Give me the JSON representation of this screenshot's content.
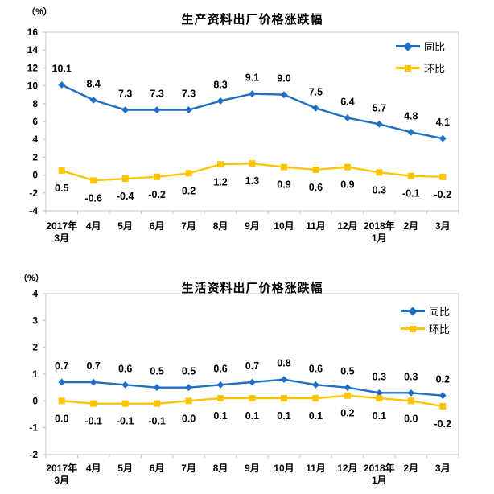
{
  "page": {
    "background": "#FFFFFF",
    "text_color": "#000000",
    "axis_color": "#C4C4C4"
  },
  "chart_data": [
    {
      "type": "line",
      "title": "生产资料出厂价格涨跌幅",
      "unit_label": "（%）",
      "ylim": [
        -4,
        16
      ],
      "ytick_step": 2,
      "grid": false,
      "legend_position": "inside-top-right",
      "categories": [
        [
          "2017年",
          "3月"
        ],
        [
          "4月"
        ],
        [
          "5月"
        ],
        [
          "6月"
        ],
        [
          "7月"
        ],
        [
          "8月"
        ],
        [
          "9月"
        ],
        [
          "10月"
        ],
        [
          "11月"
        ],
        [
          "12月"
        ],
        [
          "2018年",
          "1月"
        ],
        [
          "2月"
        ],
        [
          "3月"
        ]
      ],
      "series": [
        {
          "id": "yoy",
          "name": "同比",
          "color": "#1F6FC5",
          "marker": "diamond",
          "label_position": "above",
          "values": [
            10.1,
            8.4,
            7.3,
            7.3,
            7.3,
            8.3,
            9.1,
            9.0,
            7.5,
            6.4,
            5.7,
            4.8,
            4.1
          ]
        },
        {
          "id": "mom",
          "name": "环比",
          "color": "#FFC400",
          "marker": "square",
          "label_position": "below",
          "values": [
            0.5,
            -0.6,
            -0.4,
            -0.2,
            0.2,
            1.2,
            1.3,
            0.9,
            0.6,
            0.9,
            0.3,
            -0.1,
            -0.2
          ]
        }
      ]
    },
    {
      "type": "line",
      "title": "生活资料出厂价格涨跌幅",
      "unit_label": "（%）",
      "ylim": [
        -2,
        4
      ],
      "ytick_step": 1,
      "grid": false,
      "legend_position": "inside-top-right",
      "categories": [
        [
          "2017年",
          "3月"
        ],
        [
          "4月"
        ],
        [
          "5月"
        ],
        [
          "6月"
        ],
        [
          "7月"
        ],
        [
          "8月"
        ],
        [
          "9月"
        ],
        [
          "10月"
        ],
        [
          "11月"
        ],
        [
          "12月"
        ],
        [
          "2018年",
          "1月"
        ],
        [
          "2月"
        ],
        [
          "3月"
        ]
      ],
      "series": [
        {
          "id": "yoy",
          "name": "同比",
          "color": "#1F6FC5",
          "marker": "diamond",
          "label_position": "above",
          "values": [
            0.7,
            0.7,
            0.6,
            0.5,
            0.5,
            0.6,
            0.7,
            0.8,
            0.6,
            0.5,
            0.3,
            0.3,
            0.2
          ]
        },
        {
          "id": "mom",
          "name": "环比",
          "color": "#FFC400",
          "marker": "square",
          "label_position": "below",
          "values": [
            0.0,
            -0.1,
            -0.1,
            -0.1,
            0.0,
            0.1,
            0.1,
            0.1,
            0.1,
            0.2,
            0.1,
            0.0,
            -0.2
          ]
        }
      ]
    }
  ]
}
